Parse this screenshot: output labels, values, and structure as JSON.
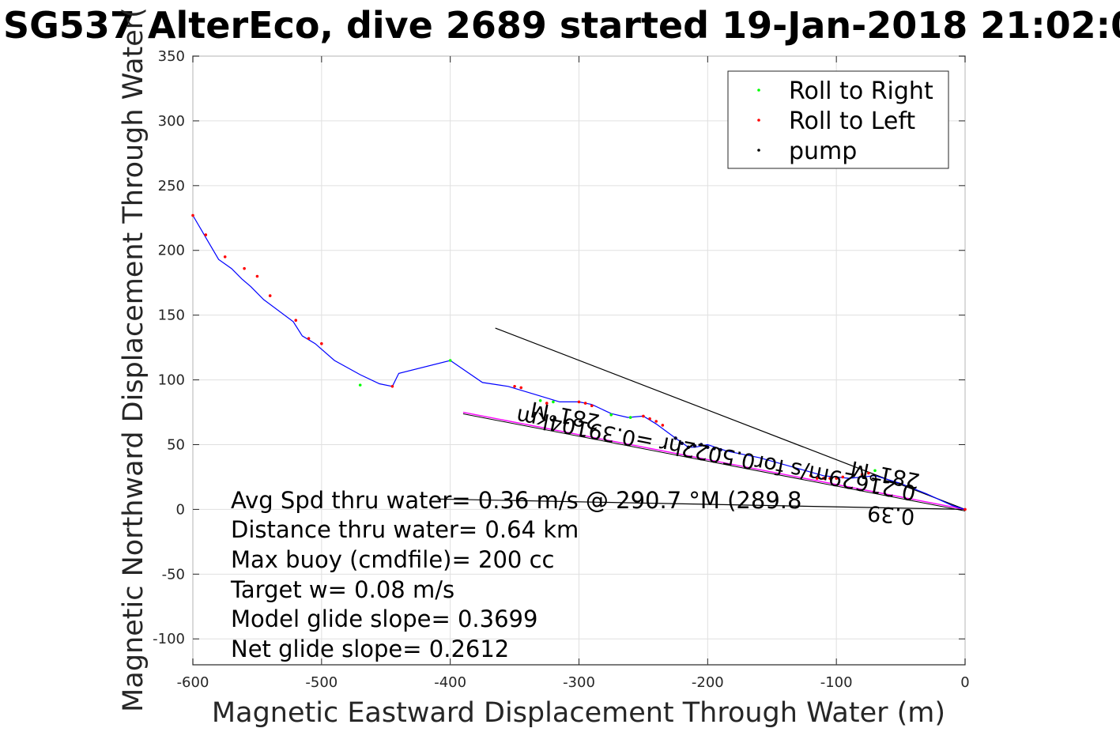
{
  "chart_data": {
    "type": "line",
    "title": "SG537 AlterEco, dive 2689 started 19-Jan-2018 21:02:0",
    "xlabel": "Magnetic Eastward Displacement Through Water (m)",
    "ylabel": "Magnetic Northward Displacement Through Water(",
    "xlim": [
      -600,
      0
    ],
    "ylim": [
      -120,
      350
    ],
    "x_ticks": [
      "-600",
      "-500",
      "-400",
      "-300",
      "-200",
      "-100",
      "0"
    ],
    "y_ticks": [
      "350",
      "300",
      "250",
      "200",
      "150",
      "100",
      "50",
      "0",
      "-50",
      "-100"
    ],
    "grid": true,
    "legend_position": "top-right",
    "legend": [
      {
        "label": "Roll to Right",
        "color": "#00ff00"
      },
      {
        "label": "Roll to Left",
        "color": "#ff0000"
      },
      {
        "label": "pump",
        "color": "#000000"
      }
    ],
    "track": {
      "color": "#0000ff",
      "x": [
        0,
        -10,
        -30,
        -50,
        -70,
        -90,
        -110,
        -135,
        -160,
        -185,
        -200,
        -210,
        -215,
        -225,
        -240,
        -250,
        -262,
        -275,
        -290,
        -300,
        -315,
        -335,
        -355,
        -375,
        -400,
        -440,
        -445,
        -455,
        -470,
        -490,
        -505,
        -515,
        -522,
        -545,
        -555,
        -562,
        -570,
        -580,
        -590,
        -600
      ],
      "y": [
        0,
        3,
        12,
        20,
        26,
        24,
        26,
        33,
        40,
        45,
        50,
        48,
        48,
        55,
        66,
        72,
        71,
        74,
        81,
        83,
        83,
        89,
        95,
        98,
        115,
        105,
        95,
        97,
        104,
        115,
        128,
        134,
        145,
        162,
        172,
        178,
        186,
        193,
        210,
        227
      ]
    },
    "roll_right_points": {
      "x": [
        -70,
        -215,
        -260,
        -275,
        -320,
        -330,
        -400,
        -470
      ],
      "y": [
        30,
        48,
        71,
        73,
        83,
        84,
        115,
        96
      ]
    },
    "roll_left_points": {
      "x": [
        0,
        -75,
        -80,
        -95,
        -100,
        -105,
        -110,
        -115,
        -120,
        -235,
        -240,
        -245,
        -250,
        -290,
        -295,
        -300,
        -325,
        -345,
        -350,
        -445,
        -500,
        -510,
        -520,
        -540,
        -550,
        -560,
        -575,
        -590,
        -600
      ],
      "y": [
        0,
        28,
        27,
        25,
        24,
        24,
        24,
        24,
        26,
        65,
        68,
        70,
        72,
        80,
        82,
        83,
        82,
        94,
        95,
        95,
        128,
        132,
        146,
        165,
        180,
        186,
        195,
        212,
        227
      ]
    },
    "pump_points": {
      "x": [
        -190,
        -195,
        -200,
        -205,
        -210,
        -215,
        -220,
        -225
      ],
      "y": [
        46,
        47,
        48,
        50,
        49,
        48,
        51,
        55
      ]
    },
    "black_lines": [
      {
        "x": [
          0,
          -365
        ],
        "y": [
          0,
          140
        ]
      },
      {
        "x": [
          0,
          -410
        ],
        "y": [
          0,
          8
        ]
      }
    ],
    "magenta_line": {
      "color": "#ff00ff",
      "x": [
        0,
        -390
      ],
      "y": [
        0,
        75
      ]
    },
    "rotated_labels": [
      "281°M",
      "0.21629m/s for0.5022hr =0.39104km",
      "281°M",
      "0.39"
    ],
    "annotations": [
      "Avg Spd thru water=  0.36 m/s @ 290.7 °M (289.8",
      "Distance thru water=  0.64 km",
      "Max buoy (cmdfile)= 200 cc",
      "Target w= 0.08 m/s",
      "Model glide slope= 0.3699",
      "Net glide slope= 0.2612"
    ]
  }
}
